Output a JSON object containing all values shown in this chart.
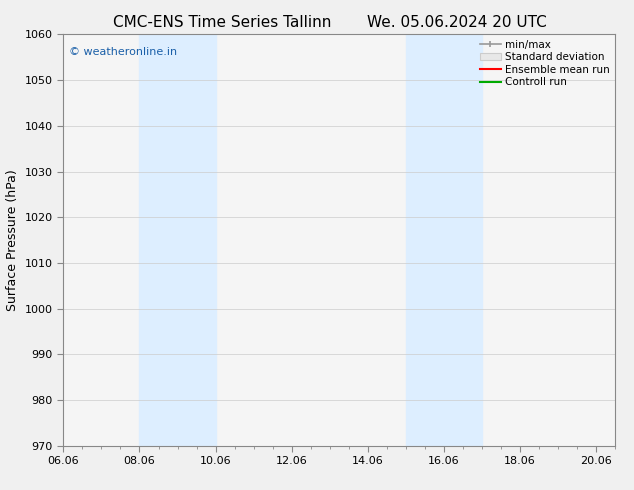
{
  "title_left": "CMC-ENS Time Series Tallinn",
  "title_right": "We. 05.06.2024 20 UTC",
  "ylabel": "Surface Pressure (hPa)",
  "ylim": [
    970,
    1060
  ],
  "yticks": [
    970,
    980,
    990,
    1000,
    1010,
    1020,
    1030,
    1040,
    1050,
    1060
  ],
  "xlim": [
    0,
    14.5
  ],
  "xtick_labels": [
    "06.06",
    "08.06",
    "10.06",
    "12.06",
    "14.06",
    "16.06",
    "18.06",
    "20.06"
  ],
  "xtick_positions": [
    0,
    2,
    4,
    6,
    8,
    10,
    12,
    14
  ],
  "shaded_bands": [
    {
      "x_start": 2,
      "x_end": 4
    },
    {
      "x_start": 9,
      "x_end": 11
    }
  ],
  "shaded_color": "#ddeeff",
  "watermark_text": "© weatheronline.in",
  "watermark_color": "#1a5fa8",
  "legend_labels": [
    "min/max",
    "Standard deviation",
    "Ensemble mean run",
    "Controll run"
  ],
  "minmax_color": "#999999",
  "std_dev_color": "#cccccc",
  "ensemble_color": "#ff0000",
  "control_color": "#00aa00",
  "bg_color": "#f0f0f0",
  "plot_bg_color": "#f5f5f5",
  "spine_color": "#888888",
  "title_fontsize": 11,
  "ylabel_fontsize": 9,
  "tick_fontsize": 8,
  "legend_fontsize": 7.5,
  "watermark_fontsize": 8
}
